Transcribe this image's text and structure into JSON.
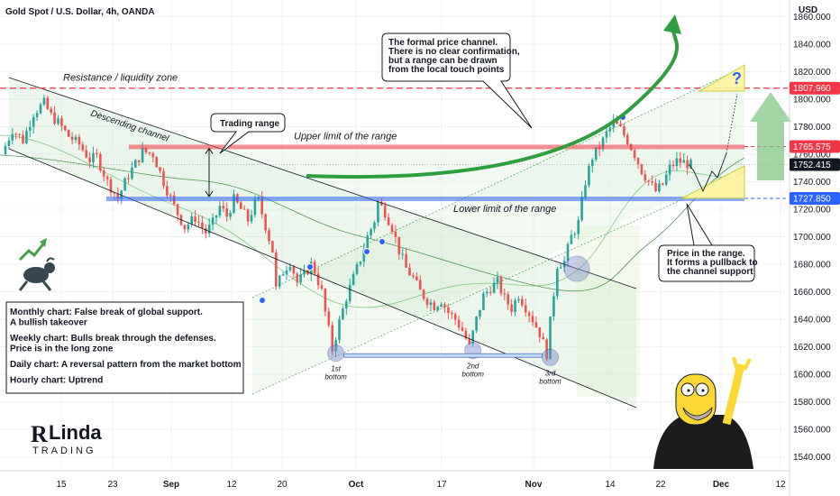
{
  "header": {
    "title": "Gold Spot / U.S. Dollar, 4h, OANDA",
    "currency": "USD"
  },
  "colors": {
    "bull": "#26a69a",
    "bear": "#ef5350",
    "resistance": "#f23645",
    "upper": "#f23645",
    "lower": "#2962ff",
    "channel_fill": "#c8e6c9",
    "arrow": "#2e9e3e",
    "last_price": "#131722"
  },
  "chart_data": {
    "type": "candlestick",
    "title": "Gold Spot / U.S. Dollar, 4h, OANDA",
    "x_tick_labels": [
      "15",
      "23",
      "Sep",
      "12",
      "20",
      "Oct",
      "17",
      "Nov",
      "14",
      "22",
      "Dec",
      "12"
    ],
    "y_tick_labels": [
      "1540.000",
      "1560.000",
      "1580.000",
      "1600.000",
      "1620.000",
      "1640.000",
      "1660.000",
      "1680.000",
      "1700.000",
      "1720.000",
      "1740.000",
      "1760.000",
      "1780.000",
      "1800.000",
      "1820.000",
      "1840.000",
      "1860.000"
    ],
    "ylim": [
      1530,
      1872
    ],
    "ylabel": "USD",
    "grid": true,
    "price_path": [
      [
        0,
        1760
      ],
      [
        3,
        1778
      ],
      [
        6,
        1770
      ],
      [
        9,
        1790
      ],
      [
        12,
        1797
      ],
      [
        14,
        1788
      ],
      [
        16,
        1783
      ],
      [
        19,
        1773
      ],
      [
        22,
        1767
      ],
      [
        25,
        1756
      ],
      [
        27,
        1758
      ],
      [
        30,
        1740
      ],
      [
        33,
        1728
      ],
      [
        36,
        1745
      ],
      [
        38,
        1753
      ],
      [
        40,
        1762
      ],
      [
        43,
        1760
      ],
      [
        46,
        1740
      ],
      [
        49,
        1722
      ],
      [
        52,
        1707
      ],
      [
        55,
        1714
      ],
      [
        58,
        1703
      ],
      [
        60,
        1710
      ],
      [
        62,
        1722
      ],
      [
        64,
        1715
      ],
      [
        66,
        1727
      ],
      [
        68,
        1720
      ],
      [
        70,
        1712
      ],
      [
        72,
        1724
      ],
      [
        73,
        1726
      ],
      [
        75,
        1708
      ],
      [
        77,
        1690
      ],
      [
        78,
        1662
      ],
      [
        80,
        1675
      ],
      [
        82,
        1682
      ],
      [
        84,
        1667
      ],
      [
        86,
        1672
      ],
      [
        88,
        1680
      ],
      [
        89,
        1675
      ],
      [
        91,
        1660
      ],
      [
        92,
        1645
      ],
      [
        93,
        1632
      ],
      [
        94,
        1618
      ],
      [
        96,
        1638
      ],
      [
        98,
        1656
      ],
      [
        100,
        1670
      ],
      [
        102,
        1684
      ],
      [
        104,
        1700
      ],
      [
        106,
        1712
      ],
      [
        107,
        1725
      ],
      [
        109,
        1718
      ],
      [
        111,
        1707
      ],
      [
        113,
        1690
      ],
      [
        115,
        1677
      ],
      [
        117,
        1670
      ],
      [
        119,
        1660
      ],
      [
        121,
        1654
      ],
      [
        123,
        1650
      ],
      [
        125,
        1654
      ],
      [
        127,
        1645
      ],
      [
        129,
        1640
      ],
      [
        131,
        1632
      ],
      [
        133,
        1620
      ],
      [
        135,
        1640
      ],
      [
        137,
        1657
      ],
      [
        139,
        1663
      ],
      [
        141,
        1667
      ],
      [
        143,
        1655
      ],
      [
        145,
        1648
      ],
      [
        147,
        1658
      ],
      [
        149,
        1649
      ],
      [
        151,
        1640
      ],
      [
        153,
        1630
      ],
      [
        155,
        1615
      ],
      [
        156,
        1638
      ],
      [
        158,
        1680
      ],
      [
        160,
        1682
      ],
      [
        162,
        1700
      ],
      [
        164,
        1710
      ],
      [
        166,
        1740
      ],
      [
        168,
        1758
      ],
      [
        170,
        1765
      ],
      [
        172,
        1775
      ],
      [
        174,
        1783
      ],
      [
        176,
        1778
      ],
      [
        178,
        1770
      ],
      [
        180,
        1760
      ],
      [
        182,
        1748
      ],
      [
        184,
        1740
      ],
      [
        186,
        1733
      ],
      [
        188,
        1738
      ],
      [
        190,
        1750
      ],
      [
        192,
        1755
      ],
      [
        194,
        1754
      ],
      [
        196,
        1752
      ]
    ],
    "levels": {
      "resistance": {
        "value": 1807.96,
        "label": "Resistance / liquidity zone"
      },
      "upper_range": {
        "value": 1765.575,
        "label": "Upper limit of the range"
      },
      "lower_range": {
        "value": 1727.85,
        "label": "Lower limit of the range"
      },
      "last_price": {
        "value": 1752.415
      }
    },
    "price_tags": [
      "1807.960",
      "1765.575",
      "1752.415",
      "1727.850"
    ],
    "bottoms": [
      {
        "label": "1st\nbottom",
        "l1": "1st",
        "l2": "bottom",
        "x": 94,
        "y": 1618
      },
      {
        "label": "2nd\nbottom",
        "l1": "2nd",
        "l2": "bottom",
        "x": 133,
        "y": 1620
      },
      {
        "label": "3rd\nbottom",
        "l1": "3rd",
        "l2": "bottom",
        "x": 155,
        "y": 1615
      }
    ],
    "channel_label": "Descending channel",
    "trading_range_label": "Trading range",
    "formal_channel_note": [
      "The formal price channel.",
      "There is no clear confirmation,",
      "but a range can be drawn",
      "from the local touch points"
    ],
    "price_in_range_note": [
      "Price in the range.",
      "It forms a pullback to",
      "the channel support"
    ],
    "summary": [
      "Monthly chart: False break of global support.",
      "A bullish takeover",
      "",
      "Weekly chart: Bulls break through the defenses.",
      "Price is in the long zone",
      "",
      "Daily chart: A reversal pattern from the market bottom",
      "",
      "Hourly chart: Uptrend"
    ],
    "question_mark": "?"
  },
  "brand": {
    "name": "Linda",
    "initial": "R",
    "sub": "TRADING"
  }
}
